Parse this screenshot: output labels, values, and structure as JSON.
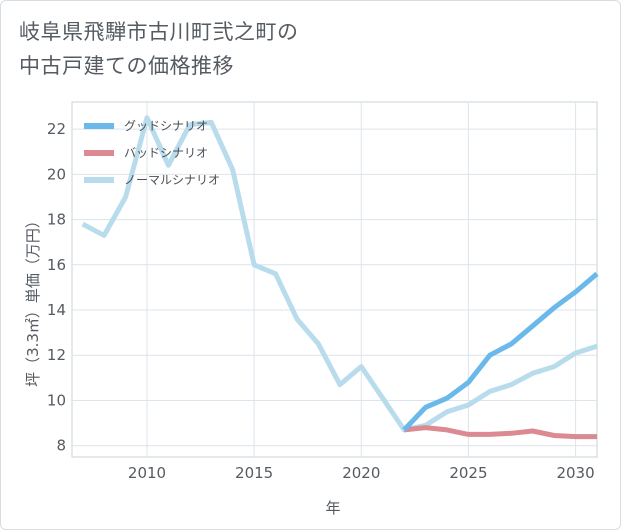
{
  "title_lines": [
    "岐阜県飛騨市古川町弐之町の",
    "中古戸建ての価格推移"
  ],
  "chart_data": {
    "type": "line",
    "title": "岐阜県飛騨市古川町弐之町の中古戸建ての価格推移",
    "xlabel": "年",
    "ylabel": "坪（3.3㎡）単価（万円）",
    "xlim": [
      2006.5,
      2031
    ],
    "ylim": [
      7.5,
      23.2
    ],
    "xticks": [
      2010,
      2015,
      2020,
      2025,
      2030
    ],
    "yticks": [
      8,
      10,
      12,
      14,
      16,
      18,
      20,
      22
    ],
    "legend": "top-left",
    "series": [
      {
        "name": "グッドシナリオ",
        "color": "#6bb9ea",
        "x": [
          2022,
          2023,
          2024,
          2025,
          2026,
          2027,
          2028,
          2029,
          2030,
          2031
        ],
        "values": [
          8.7,
          9.7,
          10.1,
          10.8,
          12.0,
          12.5,
          13.3,
          14.1,
          14.8,
          15.6
        ]
      },
      {
        "name": "バッドシナリオ",
        "color": "#dc8a92",
        "x": [
          2022,
          2023,
          2024,
          2025,
          2026,
          2027,
          2028,
          2029,
          2030,
          2031
        ],
        "values": [
          8.7,
          8.8,
          8.7,
          8.5,
          8.5,
          8.55,
          8.65,
          8.45,
          8.4,
          8.4
        ]
      },
      {
        "name": "ノーマルシナリオ",
        "color": "#b9dced",
        "x": [
          2007,
          2008,
          2009,
          2010,
          2011,
          2012,
          2013,
          2014,
          2015,
          2016,
          2017,
          2018,
          2019,
          2020,
          2021,
          2022,
          2023,
          2024,
          2025,
          2026,
          2027,
          2028,
          2029,
          2030,
          2031
        ],
        "values": [
          17.8,
          17.3,
          19.0,
          22.5,
          20.4,
          22.2,
          22.3,
          20.2,
          16.0,
          15.6,
          13.6,
          12.5,
          10.7,
          11.5,
          10.1,
          8.7,
          8.9,
          9.5,
          9.8,
          10.4,
          10.7,
          11.2,
          11.5,
          12.1,
          12.4
        ]
      }
    ]
  }
}
